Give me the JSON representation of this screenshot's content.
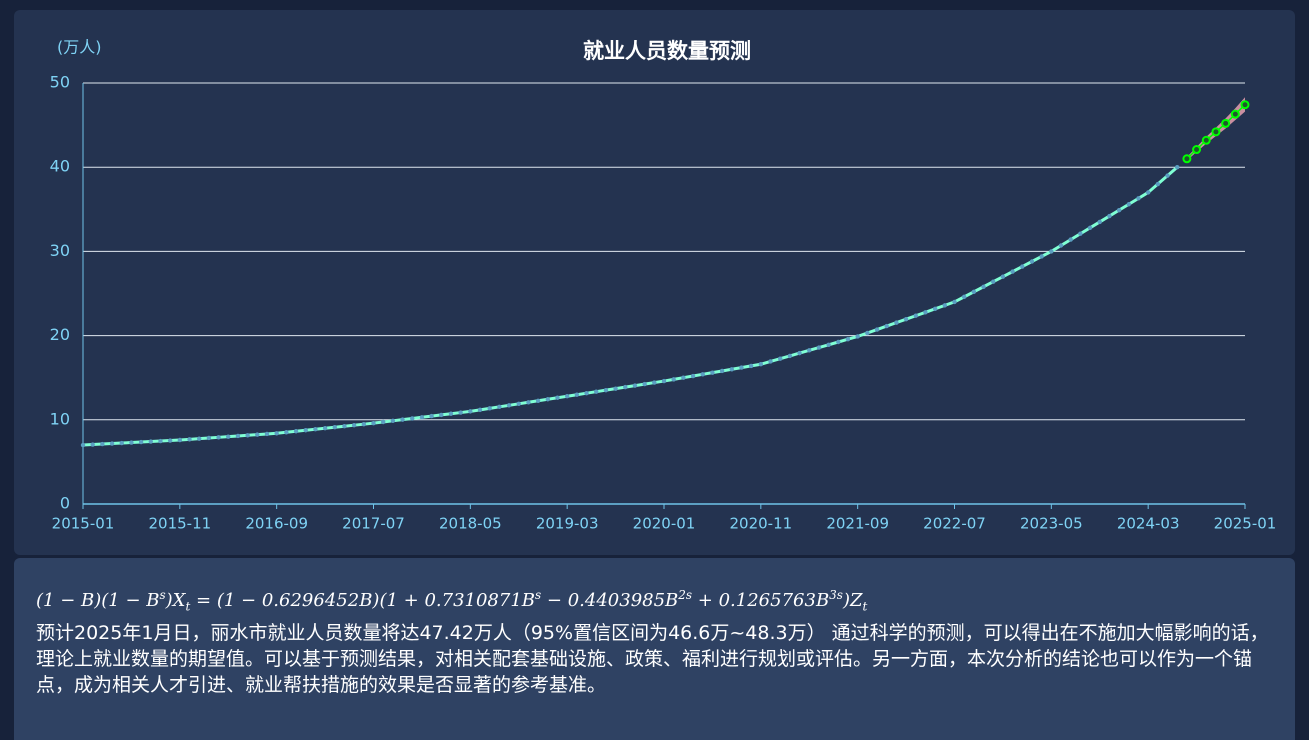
{
  "chart_data": {
    "type": "line",
    "title": "就业人员数量预测",
    "y_unit": "(万人)",
    "categories": [
      "2015-01",
      null,
      null,
      null,
      null,
      null,
      null,
      null,
      null,
      null,
      "2015-11",
      null,
      null,
      null,
      null,
      null,
      null,
      null,
      null,
      null,
      "2016-09",
      null,
      null,
      null,
      null,
      null,
      null,
      null,
      null,
      null,
      "2017-07",
      null,
      null,
      null,
      null,
      null,
      null,
      null,
      null,
      null,
      "2018-05",
      null,
      null,
      null,
      null,
      null,
      null,
      null,
      null,
      null,
      "2019-03",
      null,
      null,
      null,
      null,
      null,
      null,
      null,
      null,
      null,
      "2020-01",
      null,
      null,
      null,
      null,
      null,
      null,
      null,
      null,
      null,
      "2020-11",
      null,
      null,
      null,
      null,
      null,
      null,
      null,
      null,
      null,
      "2021-09",
      null,
      null,
      null,
      null,
      null,
      null,
      null,
      null,
      null,
      "2022-07",
      null,
      null,
      null,
      null,
      null,
      null,
      null,
      null,
      null,
      "2023-05",
      null,
      null,
      null,
      null,
      null,
      null,
      null,
      null,
      null,
      "2024-03",
      null,
      null,
      null,
      null,
      null,
      null,
      null,
      null,
      null,
      "2025-01"
    ],
    "series": [
      {
        "color": "#7fffd4",
        "marker_color": "#5b9fc2",
        "values": [
          7.0,
          7.06,
          7.12,
          7.18,
          7.24,
          7.3,
          7.36,
          7.42,
          7.48,
          7.54,
          7.6,
          7.68,
          7.76,
          7.84,
          7.92,
          8.0,
          8.08,
          8.16,
          8.24,
          8.32,
          8.4,
          8.52,
          8.64,
          8.76,
          8.88,
          9.0,
          9.12,
          9.24,
          9.36,
          9.48,
          9.6,
          9.74,
          9.88,
          10.02,
          10.16,
          10.3,
          10.44,
          10.58,
          10.72,
          10.86,
          11.0,
          11.18,
          11.36,
          11.54,
          11.72,
          11.9,
          12.08,
          12.26,
          12.44,
          12.62,
          12.8,
          12.98,
          13.16,
          13.34,
          13.52,
          13.7,
          13.88,
          14.06,
          14.24,
          14.42,
          14.6,
          14.8,
          15.0,
          15.2,
          15.4,
          15.6,
          15.8,
          16.0,
          16.2,
          16.4,
          16.6,
          16.93,
          17.26,
          17.59,
          17.92,
          18.25,
          18.58,
          18.91,
          19.24,
          19.57,
          19.9,
          20.31,
          20.72,
          21.13,
          21.54,
          21.95,
          22.36,
          22.77,
          23.18,
          23.59,
          24.0,
          24.6,
          25.2,
          25.8,
          26.4,
          27.0,
          27.6,
          28.2,
          28.8,
          29.4,
          30.0,
          30.7,
          31.4,
          32.1,
          32.8,
          33.5,
          34.2,
          34.9,
          35.6,
          36.3,
          37.0,
          38.0,
          39.0,
          40.0,
          null,
          null,
          null,
          null,
          null,
          null,
          null
        ]
      },
      {
        "color": "#00ff00",
        "band_color": "#f4a6b5",
        "values": [
          null,
          null,
          null,
          null,
          null,
          null,
          null,
          null,
          null,
          null,
          null,
          null,
          null,
          null,
          null,
          null,
          null,
          null,
          null,
          null,
          null,
          null,
          null,
          null,
          null,
          null,
          null,
          null,
          null,
          null,
          null,
          null,
          null,
          null,
          null,
          null,
          null,
          null,
          null,
          null,
          null,
          null,
          null,
          null,
          null,
          null,
          null,
          null,
          null,
          null,
          null,
          null,
          null,
          null,
          null,
          null,
          null,
          null,
          null,
          null,
          null,
          null,
          null,
          null,
          null,
          null,
          null,
          null,
          null,
          null,
          null,
          null,
          null,
          null,
          null,
          null,
          null,
          null,
          null,
          null,
          null,
          null,
          null,
          null,
          null,
          null,
          null,
          null,
          null,
          null,
          null,
          null,
          null,
          null,
          null,
          null,
          null,
          null,
          null,
          null,
          null,
          null,
          null,
          null,
          null,
          null,
          null,
          null,
          null,
          null,
          null,
          null,
          null,
          null,
          41.0,
          42.1,
          43.2,
          44.2,
          45.2,
          46.3,
          47.42
        ],
        "lower": [
          null,
          null,
          null,
          null,
          null,
          null,
          null,
          null,
          null,
          null,
          null,
          null,
          null,
          null,
          null,
          null,
          null,
          null,
          null,
          null,
          null,
          null,
          null,
          null,
          null,
          null,
          null,
          null,
          null,
          null,
          null,
          null,
          null,
          null,
          null,
          null,
          null,
          null,
          null,
          null,
          null,
          null,
          null,
          null,
          null,
          null,
          null,
          null,
          null,
          null,
          null,
          null,
          null,
          null,
          null,
          null,
          null,
          null,
          null,
          null,
          null,
          null,
          null,
          null,
          null,
          null,
          null,
          null,
          null,
          null,
          null,
          null,
          null,
          null,
          null,
          null,
          null,
          null,
          null,
          null,
          null,
          null,
          null,
          null,
          null,
          null,
          null,
          null,
          null,
          null,
          null,
          null,
          null,
          null,
          null,
          null,
          null,
          null,
          null,
          null,
          null,
          null,
          null,
          null,
          null,
          null,
          null,
          null,
          null,
          null,
          null,
          null,
          null,
          null,
          40.8,
          41.8,
          42.8,
          43.7,
          44.6,
          45.6,
          46.6
        ],
        "upper": [
          null,
          null,
          null,
          null,
          null,
          null,
          null,
          null,
          null,
          null,
          null,
          null,
          null,
          null,
          null,
          null,
          null,
          null,
          null,
          null,
          null,
          null,
          null,
          null,
          null,
          null,
          null,
          null,
          null,
          null,
          null,
          null,
          null,
          null,
          null,
          null,
          null,
          null,
          null,
          null,
          null,
          null,
          null,
          null,
          null,
          null,
          null,
          null,
          null,
          null,
          null,
          null,
          null,
          null,
          null,
          null,
          null,
          null,
          null,
          null,
          null,
          null,
          null,
          null,
          null,
          null,
          null,
          null,
          null,
          null,
          null,
          null,
          null,
          null,
          null,
          null,
          null,
          null,
          null,
          null,
          null,
          null,
          null,
          null,
          null,
          null,
          null,
          null,
          null,
          null,
          null,
          null,
          null,
          null,
          null,
          null,
          null,
          null,
          null,
          null,
          null,
          null,
          null,
          null,
          null,
          null,
          null,
          null,
          null,
          null,
          null,
          null,
          null,
          null,
          41.2,
          42.4,
          43.6,
          44.7,
          45.8,
          47.0,
          48.3
        ]
      }
    ],
    "ylim": [
      0,
      50
    ],
    "yticks": [
      0,
      10,
      20,
      30,
      40,
      50
    ],
    "grid": true
  },
  "formula": [
    "(1 − B)(1 − B",
    "s",
    ")X",
    "t",
    " = (1 − 0.6296452B)(1 + 0.7310871B",
    "s",
    " − 0.4403985B",
    "2s",
    " + 0.1265763B",
    "3s",
    ")Z",
    "t"
  ],
  "description": "预计2025年1月日，丽水市就业人员数量将达47.42万人（95%置信区间为46.6万~48.3万） 通过科学的预测，可以得出在不施加大幅影响的话，理论上就业数量的期望值。可以基于预测结果，对相关配套基础设施、政策、福利进行规划或评估。另一方面，本次分析的结论也可以作为一个锚点，成为相关人才引进、就业帮扶措施的效果是否显著的参考基准。"
}
